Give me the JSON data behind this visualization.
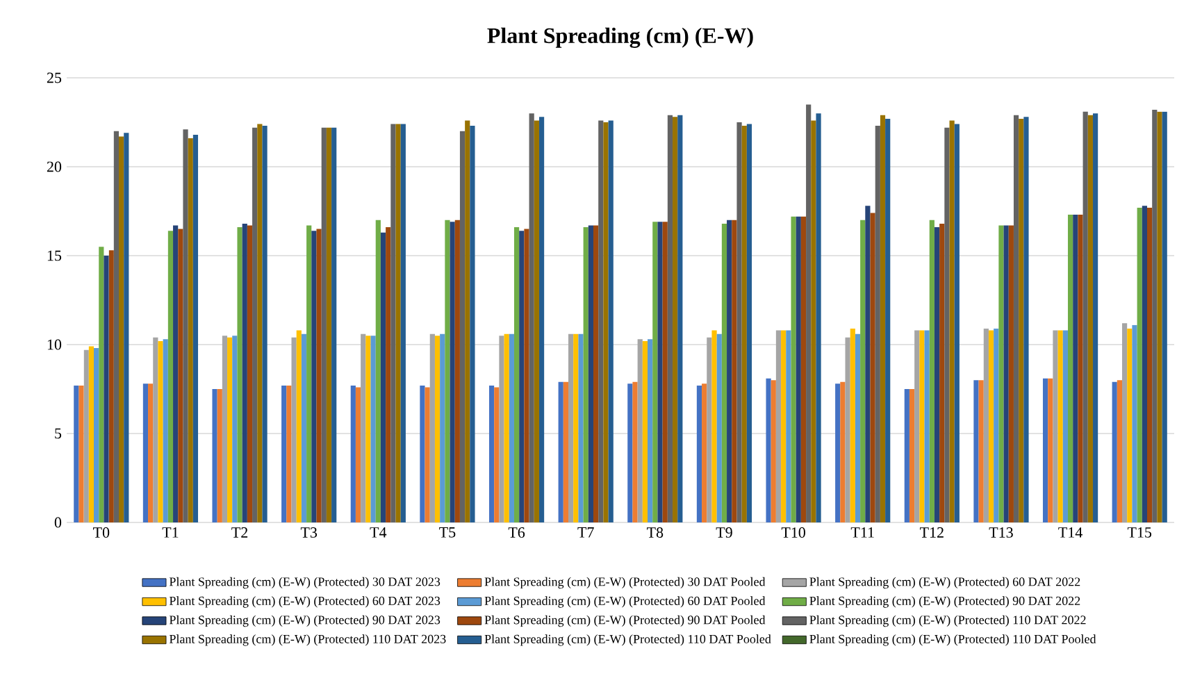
{
  "chart_data": {
    "type": "bar",
    "title": "Plant Spreading (cm) (E-W)",
    "categories": [
      "T0",
      "T1",
      "T2",
      "T3",
      "T4",
      "T5",
      "T6",
      "T7",
      "T8",
      "T9",
      "T10",
      "T11",
      "T12",
      "T13",
      "T14",
      "T15"
    ],
    "ylim": [
      0,
      25
    ],
    "yticks": [
      0,
      5,
      10,
      15,
      20,
      25
    ],
    "grid": "y",
    "legend": "bottom",
    "series": [
      {
        "name": "Plant Spreading (cm) (E-W) (Protected) 30 DAT 2023",
        "color": "#4472c4",
        "values": [
          7.7,
          7.8,
          7.5,
          7.7,
          7.7,
          7.7,
          7.7,
          7.9,
          7.8,
          7.7,
          8.1,
          7.8,
          7.5,
          8.0,
          8.1,
          7.9
        ]
      },
      {
        "name": "Plant Spreading (cm) (E-W) (Protected) 30 DAT Pooled",
        "color": "#ed7d31",
        "values": [
          7.7,
          7.8,
          7.5,
          7.7,
          7.6,
          7.6,
          7.6,
          7.9,
          7.9,
          7.8,
          8.0,
          7.9,
          7.5,
          8.0,
          8.1,
          8.0
        ]
      },
      {
        "name": "Plant Spreading (cm) (E-W) (Protected) 60 DAT 2022",
        "color": "#a5a5a5",
        "values": [
          9.7,
          10.4,
          10.5,
          10.4,
          10.6,
          10.6,
          10.5,
          10.6,
          10.3,
          10.4,
          10.8,
          10.4,
          10.8,
          10.9,
          10.8,
          11.2
        ]
      },
      {
        "name": "Plant Spreading (cm) (E-W) (Protected) 60 DAT 2023",
        "color": "#ffc000",
        "values": [
          9.9,
          10.2,
          10.4,
          10.8,
          10.5,
          10.5,
          10.6,
          10.6,
          10.2,
          10.8,
          10.8,
          10.9,
          10.8,
          10.8,
          10.8,
          10.9
        ]
      },
      {
        "name": "Plant Spreading (cm) (E-W) (Protected) 60 DAT Pooled",
        "color": "#5b9bd5",
        "values": [
          9.8,
          10.3,
          10.5,
          10.6,
          10.5,
          10.6,
          10.6,
          10.6,
          10.3,
          10.6,
          10.8,
          10.6,
          10.8,
          10.9,
          10.8,
          11.1
        ]
      },
      {
        "name": "Plant Spreading (cm) (E-W) (Protected) 90 DAT 2022",
        "color": "#70ad47",
        "values": [
          15.5,
          16.4,
          16.6,
          16.7,
          17.0,
          17.0,
          16.6,
          16.6,
          16.9,
          16.8,
          17.2,
          17.0,
          17.0,
          16.7,
          17.3,
          17.7
        ]
      },
      {
        "name": "Plant Spreading (cm) (E-W) (Protected) 90 DAT 2023",
        "color": "#264478",
        "values": [
          15.0,
          16.7,
          16.8,
          16.4,
          16.3,
          16.9,
          16.4,
          16.7,
          16.9,
          17.0,
          17.2,
          17.8,
          16.6,
          16.7,
          17.3,
          17.8
        ]
      },
      {
        "name": "Plant Spreading (cm) (E-W) (Protected) 90 DAT Pooled",
        "color": "#9e480e",
        "values": [
          15.3,
          16.5,
          16.7,
          16.5,
          16.6,
          17.0,
          16.5,
          16.7,
          16.9,
          17.0,
          17.2,
          17.4,
          16.8,
          16.7,
          17.3,
          17.7
        ]
      },
      {
        "name": "Plant Spreading (cm) (E-W) (Protected) 110 DAT 2022",
        "color": "#636363",
        "values": [
          22.0,
          22.1,
          22.2,
          22.2,
          22.4,
          22.0,
          23.0,
          22.6,
          22.9,
          22.5,
          23.5,
          22.3,
          22.2,
          22.9,
          23.1,
          23.2
        ]
      },
      {
        "name": "Plant Spreading (cm) (E-W) (Protected) 110 DAT 2023",
        "color": "#997300",
        "values": [
          21.7,
          21.6,
          22.4,
          22.2,
          22.4,
          22.6,
          22.6,
          22.5,
          22.8,
          22.3,
          22.6,
          22.9,
          22.6,
          22.7,
          22.9,
          23.1
        ]
      },
      {
        "name": "Plant Spreading (cm) (E-W) (Protected) 110 DAT Pooled",
        "color": "#255e91",
        "values": [
          21.9,
          21.8,
          22.3,
          22.2,
          22.4,
          22.3,
          22.8,
          22.6,
          22.9,
          22.4,
          23.0,
          22.7,
          22.4,
          22.8,
          23.0,
          23.1
        ]
      },
      {
        "name": "Plant Spreading (cm) (E-W) (Protected) 110 DAT Pooled",
        "color": "#43682b",
        "values": [
          null,
          null,
          null,
          null,
          null,
          null,
          null,
          null,
          null,
          null,
          null,
          null,
          null,
          null,
          null,
          null
        ]
      }
    ]
  }
}
